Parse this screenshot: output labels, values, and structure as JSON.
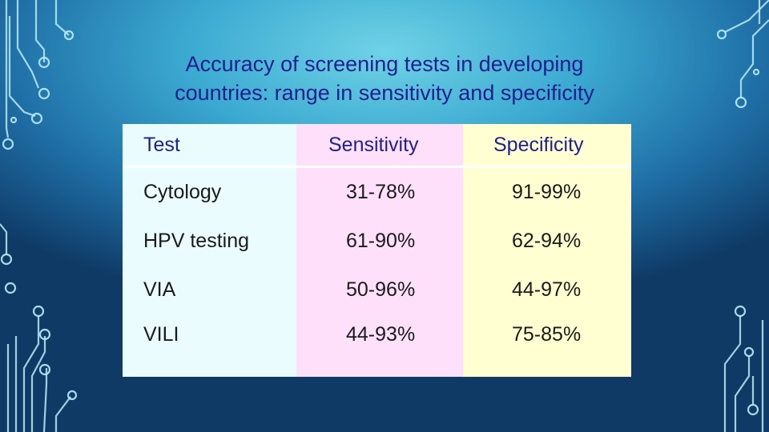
{
  "title": {
    "line1": "Accuracy of screening tests in developing",
    "line2": "countries: range in sensitivity and specificity"
  },
  "table": {
    "headers": [
      "Test",
      "Sensitivity",
      "Specificity"
    ],
    "rows": [
      [
        "Cytology",
        "31-78%",
        "91-99%"
      ],
      [
        "HPV testing",
        "61-90%",
        "62-94%"
      ],
      [
        "VIA",
        "50-96%",
        "44-97%"
      ],
      [
        "VILI",
        "44-93%",
        "75-85%"
      ]
    ]
  },
  "colors": {
    "title": "#1f1f8f",
    "col_test_bg": "#eafcfd",
    "col_sensitivity_bg": "#ffe0fb",
    "col_specificity_bg": "#ffffd2"
  }
}
